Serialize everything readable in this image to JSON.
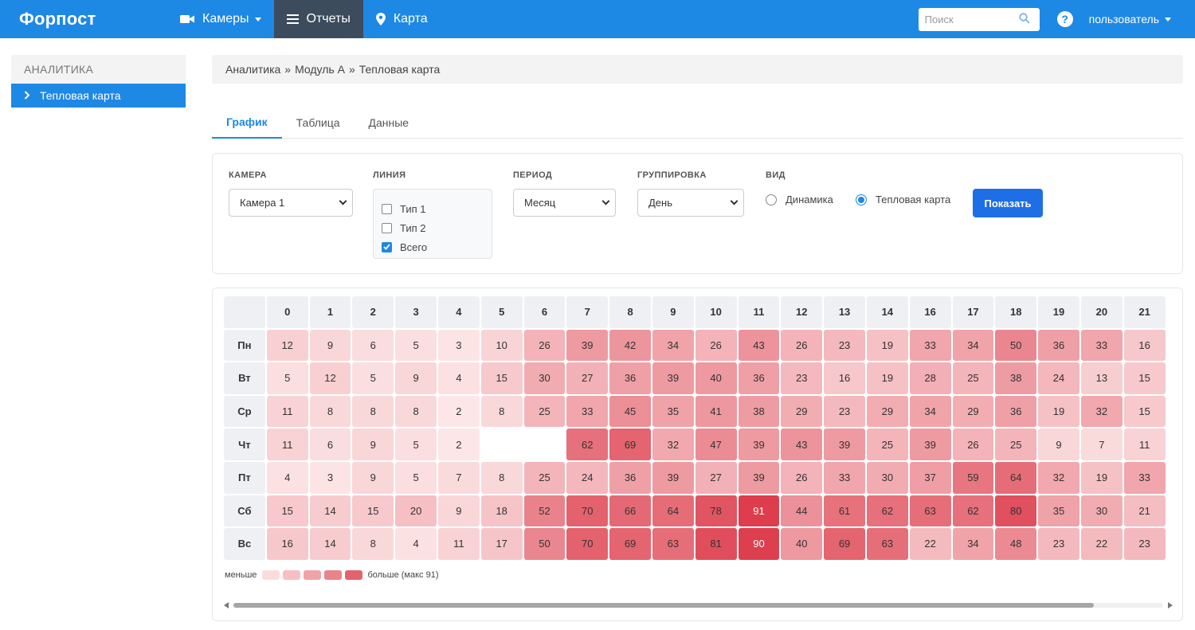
{
  "app": {
    "brand": "Форпост"
  },
  "nav": {
    "cameras": "Камеры",
    "reports": "Отчеты",
    "map": "Карта",
    "search_placeholder": "Поиск",
    "user": "пользователь"
  },
  "sidebar": {
    "header": "АНАЛИТИКА",
    "items": [
      {
        "label": "Тепловая карта"
      }
    ]
  },
  "breadcrumb": {
    "items": [
      "Аналитика",
      "Модуль А",
      "Тепловая карта"
    ],
    "separator": "»"
  },
  "tabs": [
    {
      "label": "График",
      "active": true
    },
    {
      "label": "Таблица",
      "active": false
    },
    {
      "label": "Данные",
      "active": false
    }
  ],
  "filters": {
    "camera": {
      "label": "КАМЕРА",
      "value": "Камера 1"
    },
    "line": {
      "label": "ЛИНИЯ",
      "options": [
        {
          "label": "Тип 1",
          "checked": false
        },
        {
          "label": "Тип 2",
          "checked": false
        },
        {
          "label": "Всего",
          "checked": true
        }
      ]
    },
    "period": {
      "label": "ПЕРИОД",
      "value": "Месяц"
    },
    "grouping": {
      "label": "ГРУППИРОВКА",
      "value": "День"
    },
    "view": {
      "label": "ВИД",
      "options": [
        {
          "label": "Динамика",
          "checked": false
        },
        {
          "label": "Тепловая карта",
          "checked": true
        }
      ]
    },
    "show_button": "Показать"
  },
  "heatmap": {
    "hours": [
      "0",
      "1",
      "2",
      "3",
      "4",
      "5",
      "6",
      "7",
      "8",
      "9",
      "10",
      "11",
      "12",
      "13",
      "14",
      "16",
      "17",
      "18",
      "19",
      "20",
      "21"
    ],
    "days": [
      "Пн",
      "Вт",
      "Ср",
      "Чт",
      "Пт",
      "Сб",
      "Вс"
    ],
    "max": 91,
    "values": [
      [
        12,
        9,
        6,
        5,
        3,
        10,
        26,
        39,
        42,
        34,
        26,
        43,
        26,
        23,
        19,
        33,
        34,
        50,
        36,
        33,
        16
      ],
      [
        5,
        12,
        5,
        9,
        4,
        15,
        30,
        27,
        36,
        39,
        40,
        36,
        23,
        16,
        19,
        28,
        25,
        38,
        24,
        13,
        15
      ],
      [
        11,
        8,
        8,
        8,
        2,
        8,
        25,
        33,
        45,
        35,
        41,
        38,
        29,
        23,
        29,
        34,
        29,
        36,
        19,
        32,
        15
      ],
      [
        11,
        6,
        9,
        5,
        2,
        null,
        null,
        62,
        69,
        32,
        47,
        39,
        43,
        39,
        25,
        39,
        26,
        25,
        9,
        7,
        11
      ],
      [
        4,
        3,
        9,
        5,
        7,
        8,
        25,
        24,
        36,
        39,
        27,
        39,
        26,
        33,
        30,
        37,
        59,
        64,
        32,
        19,
        33
      ],
      [
        15,
        14,
        15,
        20,
        9,
        18,
        52,
        70,
        66,
        64,
        78,
        91,
        44,
        61,
        62,
        63,
        62,
        80,
        35,
        30,
        21
      ],
      [
        16,
        14,
        8,
        4,
        11,
        17,
        50,
        70,
        69,
        63,
        81,
        90,
        40,
        69,
        63,
        22,
        34,
        48,
        23,
        22,
        23
      ]
    ],
    "legend": {
      "less": "меньше",
      "more": "больше (макс 91)",
      "swatches": [
        "#fbdcdc",
        "#f6c0c2",
        "#f0a3a7",
        "#ea838a",
        "#e2636c"
      ]
    },
    "color_low": "#fdecec",
    "color_high": "#dd3d4c"
  }
}
